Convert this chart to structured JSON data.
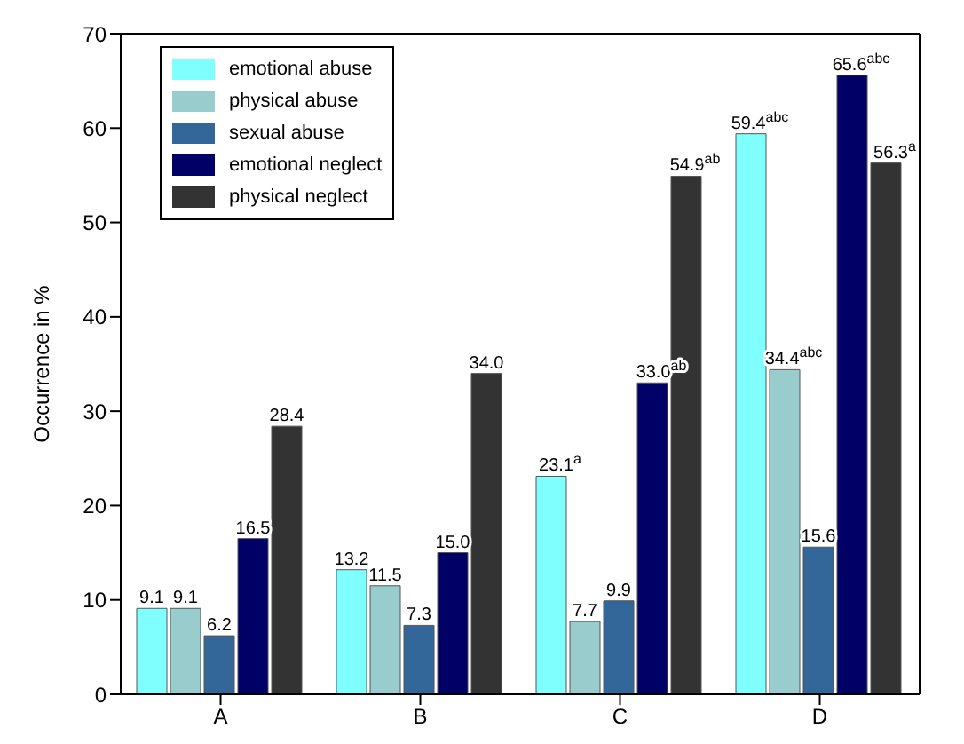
{
  "chart_data": {
    "type": "bar",
    "ylabel": "Occurrence in %",
    "categories": [
      "A",
      "B",
      "C",
      "D"
    ],
    "series": [
      {
        "name": "emotional abuse",
        "color": "#80ffff",
        "values": [
          9.1,
          13.2,
          23.1,
          59.4
        ],
        "value_labels": [
          "9.1",
          "13.2",
          "23.1$^{a}$",
          "59.4$^{abc}$"
        ]
      },
      {
        "name": "physical abuse",
        "color": "#99cccc",
        "values": [
          9.1,
          11.5,
          7.7,
          34.4
        ],
        "value_labels": [
          "9.1",
          "11.5",
          "7.7",
          "34.4$^{abc}$"
        ]
      },
      {
        "name": "sexual abuse",
        "color": "#336699",
        "values": [
          6.2,
          7.3,
          9.9,
          15.6
        ],
        "value_labels": [
          "6.2",
          "7.3",
          "9.9",
          "15.6"
        ]
      },
      {
        "name": "emotional neglect",
        "color": "#000066",
        "values": [
          16.5,
          15.0,
          33.0,
          65.6
        ],
        "value_labels": [
          "16.5",
          "15.0",
          "33.0$^{ab}$",
          "65.6$^{abc}$"
        ]
      },
      {
        "name": "physical neglect",
        "color": "#333333",
        "values": [
          28.4,
          34.0,
          54.9,
          56.3
        ],
        "value_labels": [
          "28.4",
          "34.0",
          "54.9$^{ab}$",
          "56.3$^{a}$"
        ]
      }
    ],
    "ylim": [
      0,
      70
    ],
    "yticks": [
      0,
      10,
      20,
      30,
      40,
      50,
      60,
      70
    ],
    "grid": false,
    "legend": "top left"
  }
}
